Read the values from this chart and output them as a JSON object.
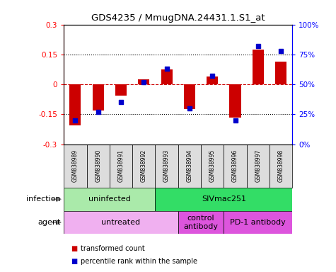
{
  "title": "GDS4235 / MmugDNA.24431.1.S1_at",
  "samples": [
    "GSM838989",
    "GSM838990",
    "GSM838991",
    "GSM838992",
    "GSM838993",
    "GSM838994",
    "GSM838995",
    "GSM838996",
    "GSM838997",
    "GSM838998"
  ],
  "bar_values": [
    -0.205,
    -0.13,
    -0.055,
    0.025,
    0.075,
    -0.125,
    0.04,
    -0.165,
    0.175,
    0.115
  ],
  "scatter_values": [
    20,
    27,
    35,
    52,
    63,
    30,
    57,
    20,
    82,
    78
  ],
  "ylim_left": [
    -0.3,
    0.3
  ],
  "ylim_right": [
    0,
    100
  ],
  "yticks_left": [
    -0.3,
    -0.15,
    0,
    0.15,
    0.3
  ],
  "yticks_right": [
    0,
    25,
    50,
    75,
    100
  ],
  "ytick_labels_right": [
    "0%",
    "25%",
    "50%",
    "75%",
    "100%"
  ],
  "bar_color": "#cc0000",
  "scatter_color": "#0000cc",
  "zero_line_color": "#cc0000",
  "dotted_line_color": "#000000",
  "infection_groups": [
    {
      "label": "uninfected",
      "start": 0,
      "end": 4,
      "color": "#aaeaaa"
    },
    {
      "label": "SIVmac251",
      "start": 4,
      "end": 10,
      "color": "#33dd66"
    }
  ],
  "agent_groups": [
    {
      "label": "untreated",
      "start": 0,
      "end": 5,
      "color": "#f0b0f0"
    },
    {
      "label": "control\nantibody",
      "start": 5,
      "end": 7,
      "color": "#dd55dd"
    },
    {
      "label": "PD-1 antibody",
      "start": 7,
      "end": 10,
      "color": "#dd55dd"
    }
  ],
  "legend_items": [
    {
      "label": "transformed count",
      "color": "#cc0000"
    },
    {
      "label": "percentile rank within the sample",
      "color": "#0000cc"
    }
  ],
  "infection_label": "infection",
  "agent_label": "agent"
}
